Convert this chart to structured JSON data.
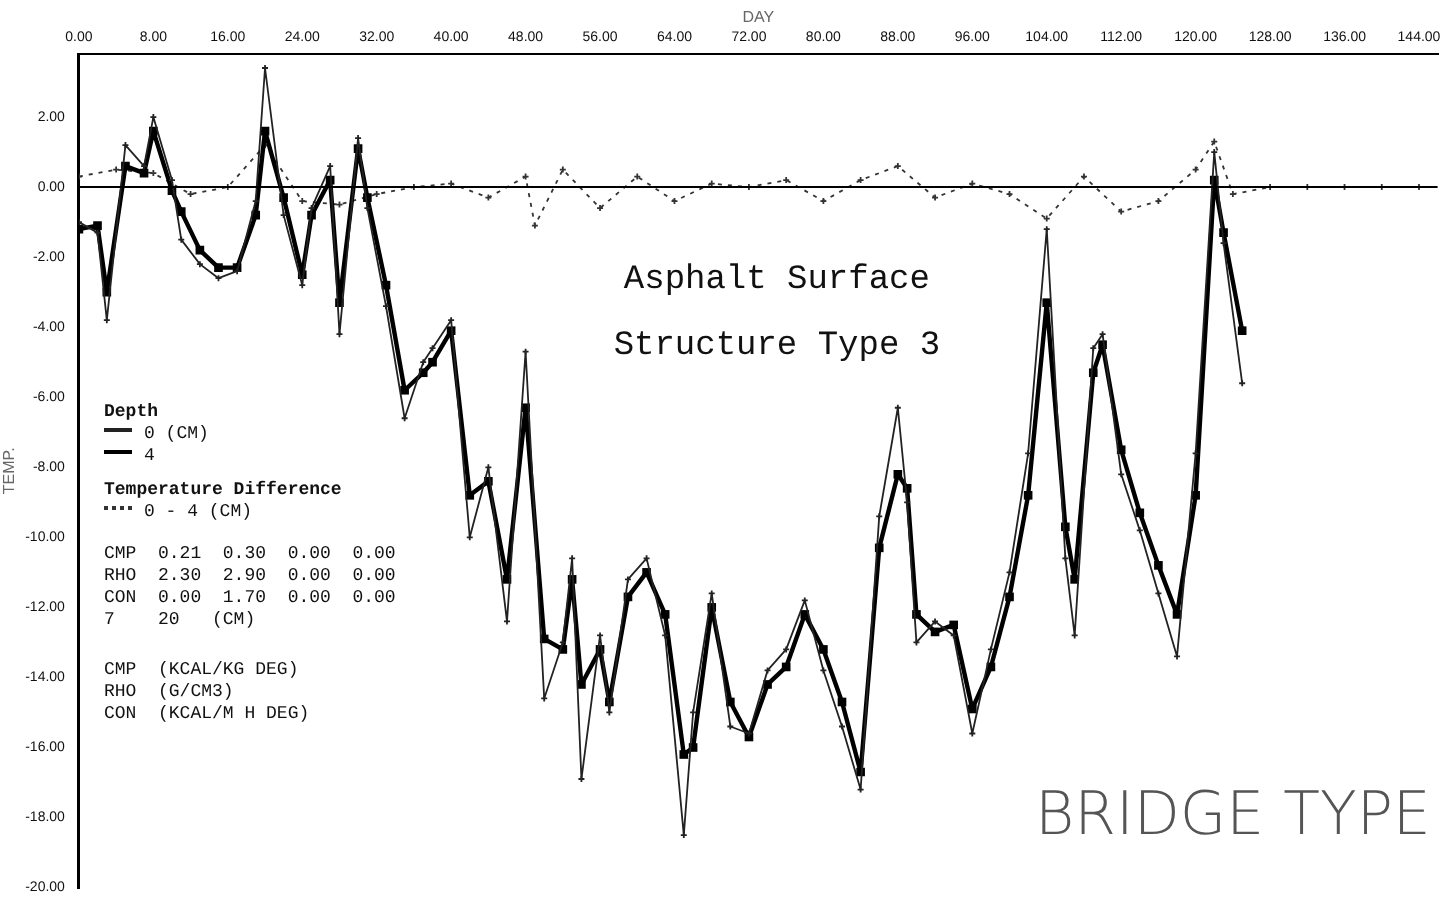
{
  "chart_data": {
    "type": "line",
    "title": "Asphalt Surface",
    "subtitle": "Structure Type 3",
    "xlabel": "DAY",
    "ylabel": "TEMP.",
    "legend_title": "Depth",
    "legend": "left",
    "grid": false,
    "ref_lines": [
      {
        "axis": "y",
        "value": 0,
        "color": "#000000",
        "line_style": "solid"
      }
    ],
    "x": [
      0,
      2,
      3,
      5,
      7,
      8,
      10,
      11,
      13,
      15,
      17,
      19,
      20,
      22,
      24,
      25,
      27,
      28,
      30,
      31,
      33,
      35,
      37,
      38,
      40,
      42,
      44,
      46,
      48,
      50,
      52,
      53,
      54,
      56,
      57,
      59,
      61,
      63,
      65,
      66,
      68,
      70,
      72,
      74,
      76,
      78,
      80,
      82,
      84,
      86,
      88,
      89,
      90,
      92,
      94,
      96,
      98,
      100,
      102,
      104,
      106,
      107,
      109,
      110,
      112,
      114,
      116,
      118,
      120,
      122,
      123,
      125
    ],
    "xlim": [
      0,
      146
    ],
    "xticks": [
      {
        "value": 0,
        "label": "0.00"
      },
      {
        "value": 8,
        "label": "8.00"
      },
      {
        "value": 16,
        "label": "16.00"
      },
      {
        "value": 24,
        "label": "24.00"
      },
      {
        "value": 32,
        "label": "32.00"
      },
      {
        "value": 40,
        "label": "40.00"
      },
      {
        "value": 48,
        "label": "48.00"
      },
      {
        "value": 56,
        "label": "56.00"
      },
      {
        "value": 64,
        "label": "64.00"
      },
      {
        "value": 72,
        "label": "72.00"
      },
      {
        "value": 80,
        "label": "80.00"
      },
      {
        "value": 88,
        "label": "88.00"
      },
      {
        "value": 96,
        "label": "96.00"
      },
      {
        "value": 104,
        "label": "104.00"
      },
      {
        "value": 112,
        "label": "112.00"
      },
      {
        "value": 120,
        "label": "120.00"
      },
      {
        "value": 128,
        "label": "128.00"
      },
      {
        "value": 136,
        "label": "136.00"
      },
      {
        "value": 144,
        "label": "144.00"
      }
    ],
    "ylim": [
      -20,
      3.8
    ],
    "yticks": [
      {
        "value": 2,
        "label": "2.00"
      },
      {
        "value": 0,
        "label": "0.00"
      },
      {
        "value": -2,
        "label": "-2.00"
      },
      {
        "value": -4,
        "label": "-4.00"
      },
      {
        "value": -6,
        "label": "-6.00"
      },
      {
        "value": -8,
        "label": "-8.00"
      },
      {
        "value": -10,
        "label": "-10.00"
      },
      {
        "value": -12,
        "label": "-12.00"
      },
      {
        "value": -14,
        "label": "-14.00"
      },
      {
        "value": -16,
        "label": "-16.00"
      },
      {
        "value": -18,
        "label": "-18.00"
      },
      {
        "value": -20,
        "label": "-20.00"
      }
    ],
    "series": [
      {
        "name": "0 (CM)",
        "color": "#222222",
        "marker": "cross",
        "line_style": "solid",
        "values": [
          -1.0,
          -1.3,
          -3.8,
          1.2,
          0.6,
          2.0,
          0.2,
          -1.5,
          -2.2,
          -2.6,
          -2.4,
          -0.4,
          3.4,
          -0.8,
          -2.8,
          -0.6,
          0.6,
          -4.2,
          1.4,
          -0.6,
          -3.4,
          -6.6,
          -5.0,
          -4.6,
          -3.8,
          -10.0,
          -8.0,
          -12.4,
          -4.7,
          -14.6,
          -13.0,
          -10.6,
          -16.9,
          -12.8,
          -15.0,
          -11.2,
          -10.6,
          -12.8,
          -18.5,
          -15.0,
          -11.6,
          -15.4,
          -15.6,
          -13.8,
          -13.2,
          -11.8,
          -13.8,
          -15.4,
          -17.2,
          -9.4,
          -6.3,
          -9.0,
          -13.0,
          -12.4,
          -12.8,
          -15.6,
          -13.2,
          -11.0,
          -7.6,
          -1.2,
          -10.6,
          -12.8,
          -4.6,
          -4.2,
          -8.2,
          -9.8,
          -11.6,
          -13.4,
          -7.6,
          1.0,
          -1.6,
          -5.6
        ]
      },
      {
        "name": "4",
        "color": "#000000",
        "marker": "square",
        "line_style": "solid",
        "values": [
          -1.2,
          -1.1,
          -3.0,
          0.6,
          0.4,
          1.6,
          -0.1,
          -0.7,
          -1.8,
          -2.3,
          -2.3,
          -0.8,
          1.6,
          -0.3,
          -2.5,
          -0.8,
          0.2,
          -3.3,
          1.1,
          -0.3,
          -2.8,
          -5.8,
          -5.3,
          -5.0,
          -4.1,
          -8.8,
          -8.4,
          -11.2,
          -6.3,
          -12.9,
          -13.2,
          -11.2,
          -14.2,
          -13.2,
          -14.7,
          -11.7,
          -11.0,
          -12.2,
          -16.2,
          -16.0,
          -12.0,
          -14.7,
          -15.7,
          -14.2,
          -13.7,
          -12.2,
          -13.2,
          -14.7,
          -16.7,
          -10.3,
          -8.2,
          -8.6,
          -12.2,
          -12.7,
          -12.5,
          -14.9,
          -13.7,
          -11.7,
          -8.8,
          -3.3,
          -9.7,
          -11.2,
          -5.3,
          -4.5,
          -7.5,
          -9.3,
          -10.8,
          -12.2,
          -8.8,
          0.2,
          -1.3,
          -4.1
        ]
      },
      {
        "name": "0 - 4 (CM)",
        "color": "#333333",
        "marker": "cross",
        "line_style": "dotted",
        "x": [
          0,
          4,
          8,
          12,
          16,
          20,
          24,
          28,
          32,
          36,
          40,
          44,
          48,
          49,
          52,
          56,
          60,
          64,
          68,
          72,
          76,
          80,
          84,
          88,
          92,
          96,
          100,
          104,
          108,
          112,
          116,
          120,
          122,
          124,
          128,
          132,
          136,
          140,
          144
        ],
        "values": [
          0.3,
          0.5,
          0.4,
          -0.2,
          0.0,
          1.2,
          -0.4,
          -0.5,
          -0.2,
          0.0,
          0.1,
          -0.3,
          0.3,
          -1.1,
          0.5,
          -0.6,
          0.3,
          -0.4,
          0.1,
          0.0,
          0.2,
          -0.4,
          0.2,
          0.6,
          -0.3,
          0.1,
          -0.2,
          -0.9,
          0.3,
          -0.7,
          -0.4,
          0.5,
          1.3,
          -0.2,
          0.0,
          0.0,
          0.0,
          0.0,
          0.0
        ]
      }
    ],
    "annotations": [
      "BRIDGE TYPE",
      "Temperature Difference",
      "CMP  0.21  0.30  0.00  0.00",
      "RHO  2.30  2.90  0.00  0.00",
      "CON  0.00  1.70  0.00  0.00",
      "7    20   (CM)",
      "CMP  (KCAL/KG DEG)",
      "RHO  (G/CM3)",
      "CON  (KCAL/M H DEG)"
    ]
  }
}
